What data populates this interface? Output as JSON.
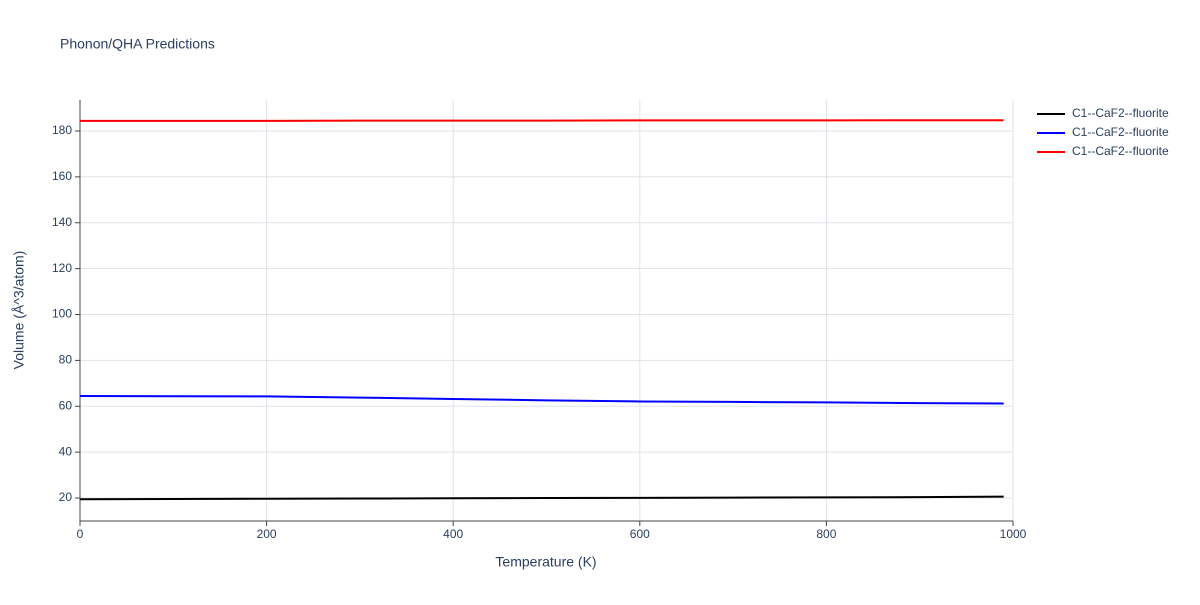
{
  "chart_data": {
    "type": "line",
    "title": "Phonon/QHA Predictions",
    "x_label": "Temperature (K)",
    "y_label": "Volume (Å^3/atom)",
    "x": [
      0,
      100,
      200,
      300,
      400,
      500,
      600,
      700,
      800,
      900,
      990
    ],
    "series": [
      {
        "name": "C1--CaF2--fluorite",
        "color": "#000000",
        "values": [
          19.5,
          19.6,
          19.7,
          19.8,
          19.9,
          20.0,
          20.1,
          20.2,
          20.3,
          20.4,
          20.6
        ]
      },
      {
        "name": "C1--CaF2--fluorite",
        "color": "#0000ff",
        "values": [
          64.5,
          64.4,
          64.3,
          63.8,
          63.2,
          62.6,
          62.1,
          61.9,
          61.7,
          61.4,
          61.2
        ]
      },
      {
        "name": "C1--CaF2--fluorite",
        "color": "#ff0000",
        "values": [
          184.4,
          184.4,
          184.4,
          184.5,
          184.5,
          184.5,
          184.6,
          184.6,
          184.6,
          184.7,
          184.7
        ]
      }
    ],
    "xlim": [
      0,
      1000
    ],
    "xticks": [
      0,
      200,
      400,
      600,
      800,
      1000
    ],
    "ylim": [
      10,
      193.5
    ],
    "yticks": [
      20,
      40,
      60,
      80,
      100,
      120,
      140,
      160,
      180
    ],
    "grid": true,
    "legend": "right"
  }
}
